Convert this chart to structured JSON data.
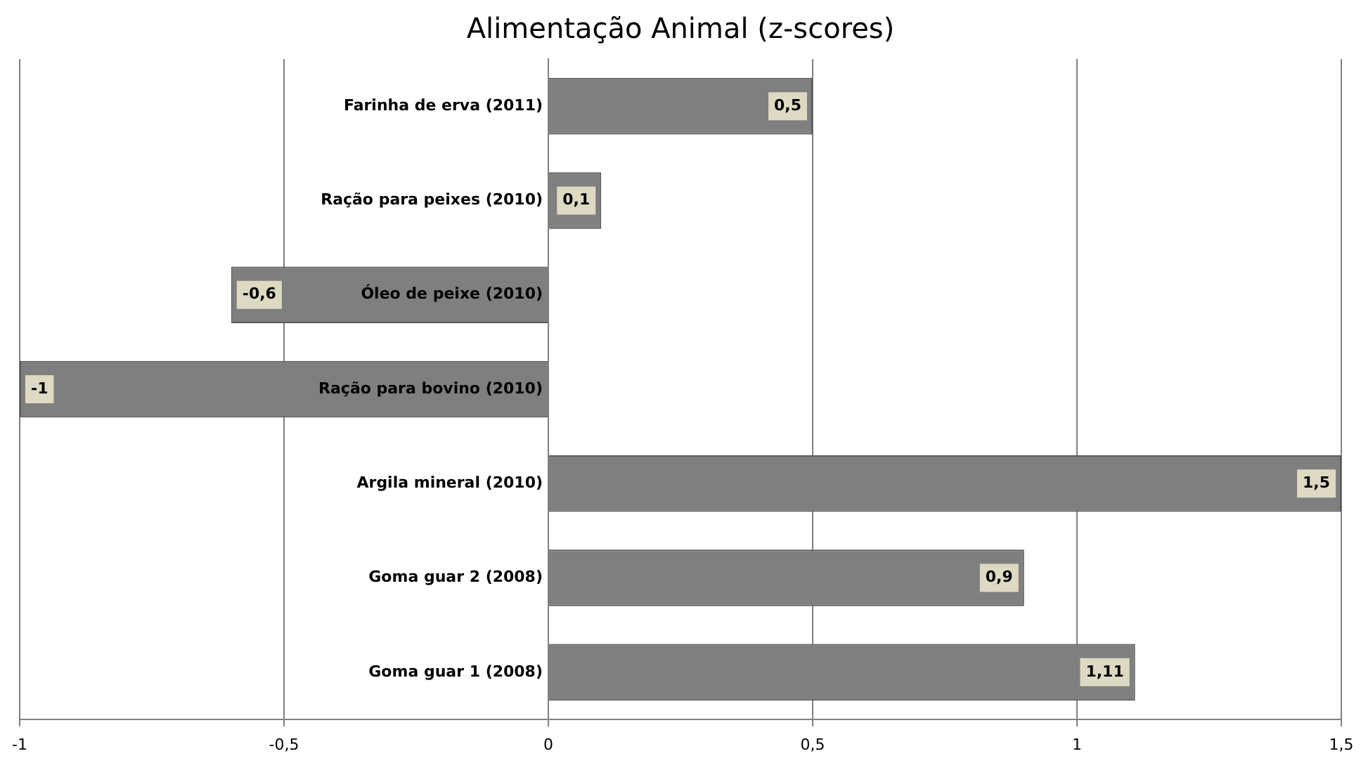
{
  "chart_data": {
    "type": "bar",
    "orientation": "horizontal",
    "title": "Alimentação Animal (z-scores)",
    "categories": [
      "Farinha de erva (2011)",
      "Ração para peixes (2010)",
      "Óleo de peixe (2010)",
      "Ração para bovino (2010)",
      "Argila mineral (2010)",
      "Goma guar 2 (2008)",
      "Goma guar 1 (2008)"
    ],
    "values": [
      0.5,
      0.1,
      -0.6,
      -1,
      1.5,
      0.9,
      1.11
    ],
    "value_labels": [
      "0,5",
      "0,1",
      "-0,6",
      "-1",
      "1,5",
      "0,9",
      "1,11"
    ],
    "color": "#7f7f7f",
    "xlim": [
      -1,
      1.5
    ],
    "xticks": [
      {
        "value": -1,
        "label": "-1"
      },
      {
        "value": -0.5,
        "label": "-0,5"
      },
      0,
      {
        "value": 0.5,
        "label": "0,5"
      },
      1,
      {
        "value": 1.5,
        "label": "1,5"
      }
    ],
    "grid": "x"
  }
}
